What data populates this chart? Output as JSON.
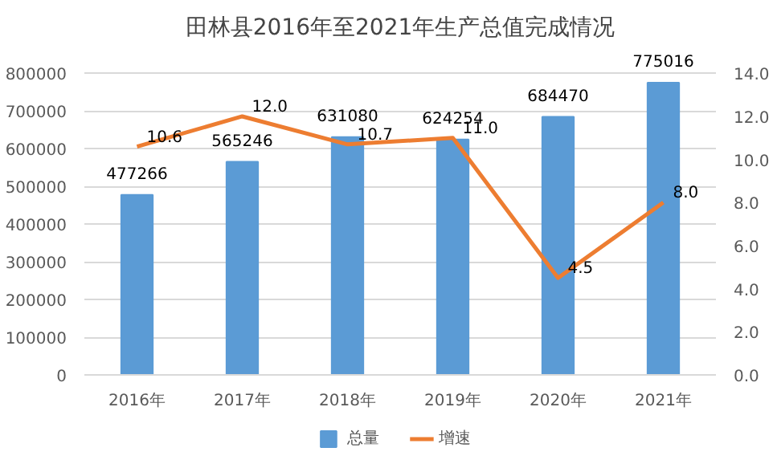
{
  "chart_data": {
    "type": "bar",
    "title": "田林县2016年至2021年生产总值完成情况",
    "categories": [
      "2016年",
      "2017年",
      "2018年",
      "2019年",
      "2020年",
      "2021年"
    ],
    "series": [
      {
        "name": "总量",
        "color": "#5b9bd5",
        "values": [
          477266,
          565246,
          631080,
          624254,
          684470,
          775016
        ]
      },
      {
        "name": "增速",
        "type": "line",
        "axis": "y2",
        "color": "#ed7d31",
        "values": [
          10.6,
          12.0,
          10.7,
          11.0,
          4.5,
          8.0
        ],
        "value_labels": [
          "10.6",
          "12.0",
          "10.7",
          "11.0",
          "4.5",
          "8.0"
        ]
      }
    ],
    "data_labels": true,
    "ylim": [
      0,
      800000
    ],
    "yticks": [
      0,
      100000,
      200000,
      300000,
      400000,
      500000,
      600000,
      700000,
      800000
    ],
    "y2lim": [
      0,
      14
    ],
    "y2ticks": [
      {
        "value": 0,
        "label": "0.0"
      },
      {
        "value": 2,
        "label": "2.0"
      },
      {
        "value": 4,
        "label": "4.0"
      },
      {
        "value": 6,
        "label": "6.0"
      },
      {
        "value": 8,
        "label": "8.0"
      },
      {
        "value": 10,
        "label": "10.0"
      },
      {
        "value": 12,
        "label": "12.0"
      },
      {
        "value": 14,
        "label": "14.0"
      }
    ],
    "grid": "y",
    "legend": "bottom",
    "marker": "none",
    "line_style": "solid"
  }
}
